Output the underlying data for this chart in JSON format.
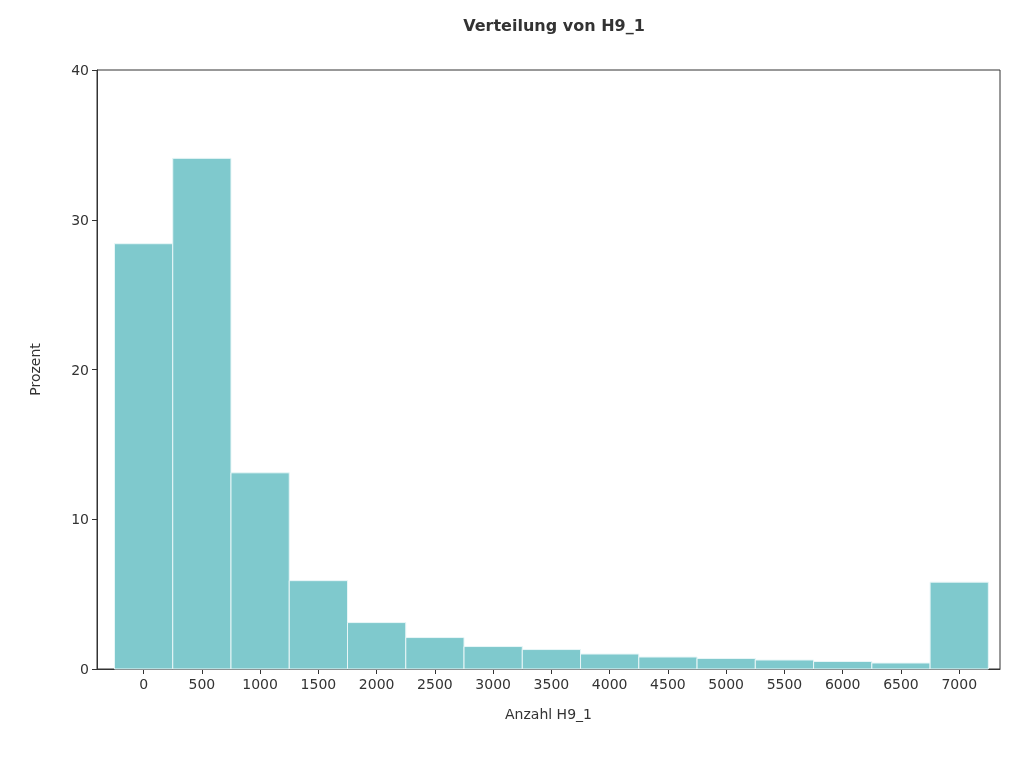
{
  "chart_data": {
    "type": "histogram",
    "title": "Verteilung von H9_1",
    "xlabel": "Anzahl H9_1",
    "ylabel": "Prozent",
    "bins": [
      -250,
      250,
      750,
      1250,
      1750,
      2250,
      2750,
      3250,
      3750,
      4250,
      4750,
      5250,
      5750,
      6250,
      6750,
      7250
    ],
    "values": [
      28.4,
      34.1,
      13.1,
      5.9,
      3.1,
      2.1,
      1.5,
      1.3,
      1.0,
      0.8,
      0.7,
      0.6,
      0.5,
      0.4,
      5.8
    ],
    "color": "#7fc9cd",
    "xlim": [
      -400,
      7350
    ],
    "xticks": [
      0,
      500,
      1000,
      1500,
      2000,
      2500,
      3000,
      3500,
      4000,
      4500,
      5000,
      5500,
      6000,
      6500,
      7000
    ],
    "ylim": [
      0,
      40
    ],
    "yticks": [
      0,
      10,
      20,
      30,
      40
    ],
    "grid": false
  }
}
